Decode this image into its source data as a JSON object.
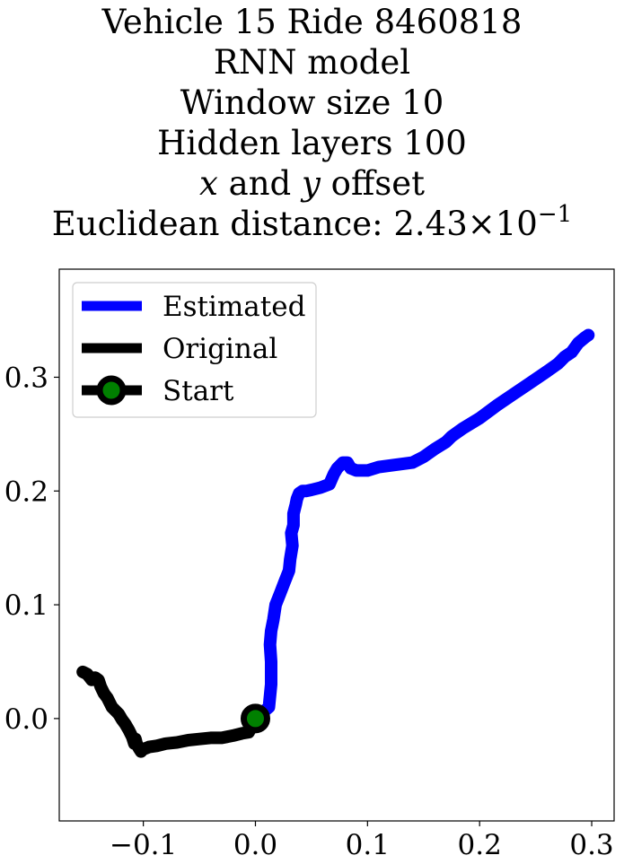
{
  "title": {
    "line1": "Vehicle 15 Ride 8460818",
    "line2": "RNN model",
    "line3": "Window size 10",
    "line4": "Hidden layers 100",
    "line5_x": "x",
    "line5_mid": " and ",
    "line5_y": "y",
    "line5_rest": " offset",
    "line6_text": "Euclidean distance: 2.43",
    "line6_times": "×",
    "line6_base": "10",
    "line6_exp": "−1"
  },
  "chart_data": {
    "type": "line",
    "xlim": [
      -0.175,
      0.32
    ],
    "ylim": [
      -0.09,
      0.395
    ],
    "xticks": [
      -0.1,
      0.0,
      0.1,
      0.2,
      0.3
    ],
    "xtick_labels": [
      "−0.1",
      "0.0",
      "0.1",
      "0.2",
      "0.3"
    ],
    "yticks": [
      0.0,
      0.1,
      0.2,
      0.3
    ],
    "ytick_labels": [
      "0.0",
      "0.1",
      "0.2",
      "0.3"
    ],
    "grid": false,
    "legend_position": "upper-left",
    "series": [
      {
        "name": "Estimated",
        "color": "#0000ff",
        "x": [
          0.0,
          0.012,
          0.014,
          0.014,
          0.013,
          0.014,
          0.016,
          0.018,
          0.022,
          0.026,
          0.03,
          0.031,
          0.033,
          0.032,
          0.034,
          0.034,
          0.036,
          0.037,
          0.039,
          0.042,
          0.045,
          0.05,
          0.058,
          0.066,
          0.07,
          0.073,
          0.078,
          0.082,
          0.085,
          0.09,
          0.1,
          0.11,
          0.125,
          0.14,
          0.15,
          0.16,
          0.17,
          0.175,
          0.185,
          0.2,
          0.215,
          0.23,
          0.245,
          0.26,
          0.27,
          0.276,
          0.282,
          0.288,
          0.294,
          0.297
        ],
        "y": [
          0.0,
          0.01,
          0.03,
          0.05,
          0.065,
          0.077,
          0.087,
          0.1,
          0.11,
          0.12,
          0.13,
          0.14,
          0.152,
          0.163,
          0.17,
          0.18,
          0.188,
          0.193,
          0.198,
          0.2,
          0.2,
          0.201,
          0.203,
          0.206,
          0.215,
          0.22,
          0.225,
          0.225,
          0.22,
          0.218,
          0.218,
          0.221,
          0.223,
          0.225,
          0.23,
          0.237,
          0.243,
          0.248,
          0.255,
          0.264,
          0.275,
          0.285,
          0.295,
          0.305,
          0.312,
          0.318,
          0.322,
          0.33,
          0.335,
          0.337
        ]
      },
      {
        "name": "Original",
        "color": "#000000",
        "x": [
          -0.154,
          -0.15,
          -0.146,
          -0.143,
          -0.14,
          -0.138,
          -0.135,
          -0.132,
          -0.128,
          -0.126,
          -0.122,
          -0.119,
          -0.116,
          -0.113,
          -0.11,
          -0.108,
          -0.107,
          -0.106,
          -0.104,
          -0.102,
          -0.1,
          -0.095,
          -0.088,
          -0.08,
          -0.07,
          -0.06,
          -0.05,
          -0.04,
          -0.03,
          -0.02,
          -0.012,
          -0.006,
          0.0
        ],
        "y": [
          0.041,
          0.039,
          0.034,
          0.036,
          0.034,
          0.028,
          0.022,
          0.018,
          0.01,
          0.008,
          0.004,
          -0.001,
          -0.005,
          -0.01,
          -0.016,
          -0.022,
          -0.018,
          -0.022,
          -0.026,
          -0.029,
          -0.027,
          -0.025,
          -0.024,
          -0.022,
          -0.021,
          -0.019,
          -0.018,
          -0.017,
          -0.017,
          -0.015,
          -0.013,
          -0.012,
          0.0
        ]
      }
    ],
    "start": {
      "name": "Start",
      "x": 0.0,
      "y": 0.0,
      "edge_color": "#000000",
      "face_color": "#008000"
    }
  }
}
